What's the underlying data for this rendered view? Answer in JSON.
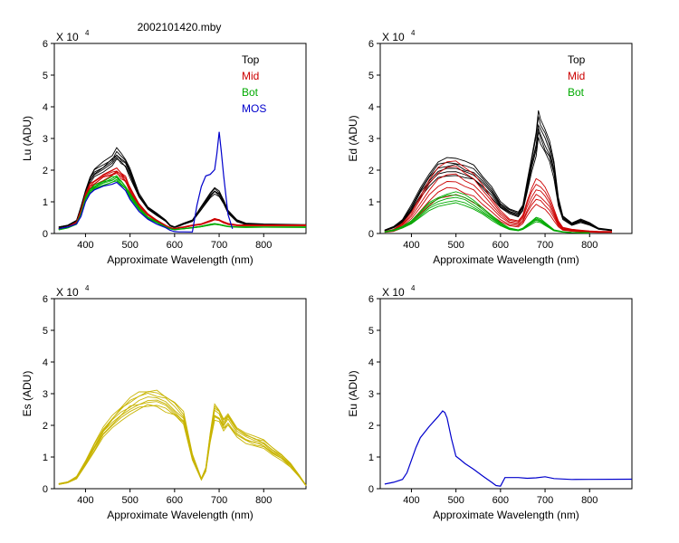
{
  "figure_title": "2002101420.mby",
  "colors": {
    "Top": "#000000",
    "Mid": "#cc0000",
    "Bot": "#00aa00",
    "MOS": "#0000cc",
    "Es": "#c8b400",
    "Eu": "#0000cc"
  },
  "chart_data": [
    {
      "type": "line",
      "id": "lu",
      "ylabel": "Lu (ADU)",
      "xlabel": "Approximate Wavelength (nm)",
      "multiplier": "X 10",
      "exponent": "4",
      "xlim": [
        330,
        895
      ],
      "ylim": [
        0,
        6
      ],
      "xticks": [
        "400",
        "500",
        "600",
        "700",
        "800"
      ],
      "xtick_values": [
        400,
        500,
        600,
        700,
        800
      ],
      "yticks": [
        "0",
        "1",
        "2",
        "3",
        "4",
        "5",
        "6"
      ],
      "legend": [
        "Top",
        "Mid",
        "Bot",
        "MOS"
      ],
      "series": [
        {
          "name": "Top",
          "color_key": "Top",
          "count": 6,
          "spread": 0.06,
          "x": [
            340,
            360,
            380,
            390,
            400,
            410,
            420,
            440,
            460,
            470,
            480,
            490,
            500,
            520,
            540,
            560,
            580,
            590,
            600,
            610,
            620,
            640,
            660,
            680,
            690,
            700,
            710,
            720,
            740,
            760,
            800,
            895
          ],
          "values": [
            0.2,
            0.25,
            0.4,
            0.8,
            1.3,
            1.7,
            1.9,
            2.1,
            2.3,
            2.5,
            2.35,
            2.2,
            1.9,
            1.2,
            0.8,
            0.6,
            0.4,
            0.25,
            0.2,
            0.25,
            0.3,
            0.4,
            0.8,
            1.2,
            1.35,
            1.25,
            1.0,
            0.7,
            0.4,
            0.3,
            0.28,
            0.26
          ]
        },
        {
          "name": "Mid",
          "color_key": "Mid",
          "count": 6,
          "spread": 0.05,
          "x": [
            340,
            360,
            380,
            390,
            400,
            410,
            420,
            440,
            460,
            470,
            480,
            490,
            500,
            520,
            540,
            560,
            580,
            590,
            600,
            610,
            620,
            640,
            660,
            680,
            690,
            700,
            710,
            720,
            740,
            760,
            800,
            895
          ],
          "values": [
            0.15,
            0.2,
            0.35,
            0.7,
            1.2,
            1.5,
            1.6,
            1.8,
            1.9,
            2.0,
            1.85,
            1.7,
            1.4,
            0.9,
            0.6,
            0.4,
            0.25,
            0.18,
            0.15,
            0.18,
            0.2,
            0.25,
            0.3,
            0.4,
            0.45,
            0.42,
            0.35,
            0.3,
            0.26,
            0.26,
            0.26,
            0.26
          ]
        },
        {
          "name": "Bot",
          "color_key": "Bot",
          "count": 6,
          "spread": 0.04,
          "x": [
            340,
            360,
            380,
            390,
            400,
            410,
            420,
            440,
            460,
            470,
            480,
            490,
            500,
            520,
            540,
            560,
            580,
            590,
            600,
            610,
            620,
            640,
            660,
            680,
            690,
            700,
            710,
            720,
            740,
            760,
            800,
            895
          ],
          "values": [
            0.12,
            0.18,
            0.3,
            0.6,
            1.1,
            1.35,
            1.45,
            1.6,
            1.7,
            1.75,
            1.6,
            1.45,
            1.2,
            0.8,
            0.5,
            0.35,
            0.2,
            0.15,
            0.12,
            0.14,
            0.15,
            0.18,
            0.22,
            0.28,
            0.3,
            0.28,
            0.25,
            0.22,
            0.2,
            0.2,
            0.2,
            0.2
          ]
        },
        {
          "name": "MOS",
          "color_key": "MOS",
          "count": 1,
          "spread": 0,
          "x": [
            340,
            360,
            380,
            390,
            400,
            410,
            420,
            440,
            460,
            470,
            480,
            490,
            500,
            520,
            540,
            560,
            580,
            590,
            600,
            610,
            620,
            640,
            650,
            660,
            670,
            680,
            690,
            695,
            700,
            705,
            710,
            720,
            730
          ],
          "values": [
            0.15,
            0.2,
            0.3,
            0.55,
            1.0,
            1.25,
            1.35,
            1.5,
            1.55,
            1.6,
            1.5,
            1.35,
            1.1,
            0.7,
            0.45,
            0.3,
            0.18,
            0.1,
            0.06,
            0.05,
            0.05,
            0.05,
            0.9,
            1.5,
            1.8,
            1.9,
            2.0,
            2.5,
            3.2,
            2.6,
            1.8,
            0.6,
            0.15
          ]
        }
      ]
    },
    {
      "type": "line",
      "id": "ed",
      "ylabel": "Ed  (ADU)",
      "xlabel": "Approximate Wavelength (nm)",
      "multiplier": "X 10",
      "exponent": "4",
      "xlim": [
        330,
        895
      ],
      "ylim": [
        0,
        6
      ],
      "xticks": [
        "400",
        "500",
        "600",
        "700",
        "800"
      ],
      "xtick_values": [
        400,
        500,
        600,
        700,
        800
      ],
      "yticks": [
        "0",
        "1",
        "2",
        "3",
        "4",
        "5",
        "6"
      ],
      "legend": [
        "Top",
        "Mid",
        "Bot"
      ],
      "series": [
        {
          "name": "Top",
          "color_key": "Top",
          "count": 6,
          "spread": 0.12,
          "x": [
            340,
            360,
            380,
            400,
            420,
            440,
            460,
            480,
            500,
            520,
            540,
            560,
            580,
            600,
            620,
            640,
            650,
            660,
            670,
            680,
            685,
            690,
            700,
            710,
            720,
            730,
            740,
            760,
            780,
            800,
            820,
            850
          ],
          "values": [
            0.1,
            0.2,
            0.4,
            0.8,
            1.3,
            1.7,
            2.0,
            2.1,
            2.1,
            2.0,
            1.9,
            1.6,
            1.3,
            0.9,
            0.7,
            0.6,
            0.8,
            1.5,
            2.2,
            2.8,
            3.4,
            3.2,
            2.9,
            2.6,
            2.0,
            1.0,
            0.5,
            0.3,
            0.4,
            0.3,
            0.15,
            0.1
          ]
        },
        {
          "name": "Mid",
          "color_key": "Mid",
          "count": 6,
          "spread": 0.45,
          "x": [
            340,
            360,
            380,
            400,
            420,
            440,
            460,
            480,
            500,
            520,
            540,
            560,
            580,
            600,
            620,
            640,
            650,
            660,
            670,
            680,
            690,
            700,
            710,
            720,
            730,
            740,
            760,
            780,
            800,
            820,
            850
          ],
          "values": [
            0.05,
            0.1,
            0.25,
            0.5,
            0.9,
            1.3,
            1.6,
            1.75,
            1.75,
            1.6,
            1.45,
            1.15,
            0.85,
            0.55,
            0.35,
            0.3,
            0.45,
            0.8,
            1.1,
            1.3,
            1.25,
            1.1,
            0.9,
            0.6,
            0.3,
            0.15,
            0.1,
            0.08,
            0.06,
            0.05,
            0.05
          ]
        },
        {
          "name": "Bot",
          "color_key": "Bot",
          "count": 5,
          "spread": 0.15,
          "x": [
            340,
            360,
            380,
            400,
            420,
            440,
            460,
            480,
            500,
            520,
            540,
            560,
            580,
            600,
            620,
            640,
            650,
            660,
            670,
            680,
            690,
            700,
            710,
            720,
            740,
            760,
            800
          ],
          "values": [
            0.05,
            0.1,
            0.2,
            0.35,
            0.6,
            0.85,
            1.0,
            1.1,
            1.15,
            1.05,
            0.9,
            0.7,
            0.5,
            0.3,
            0.15,
            0.1,
            0.15,
            0.25,
            0.35,
            0.45,
            0.4,
            0.3,
            0.2,
            0.1,
            0.05,
            0.03,
            0.02
          ]
        }
      ]
    },
    {
      "type": "line",
      "id": "es",
      "ylabel": "Es  (ADU)",
      "xlabel": "Approximate Wavelength (nm)",
      "multiplier": "X 10",
      "exponent": "4",
      "xlim": [
        330,
        895
      ],
      "ylim": [
        0,
        6
      ],
      "xticks": [
        "400",
        "500",
        "600",
        "700",
        "800"
      ],
      "xtick_values": [
        400,
        500,
        600,
        700,
        800
      ],
      "yticks": [
        "0",
        "1",
        "2",
        "3",
        "4",
        "5",
        "6"
      ],
      "legend": [],
      "series": [
        {
          "name": "Es",
          "color_key": "Es",
          "count": 8,
          "spread": 0.09,
          "x": [
            340,
            360,
            380,
            400,
            420,
            440,
            460,
            480,
            500,
            520,
            540,
            560,
            580,
            600,
            620,
            640,
            660,
            670,
            680,
            690,
            700,
            710,
            720,
            740,
            760,
            780,
            800,
            820,
            840,
            860,
            880,
            895
          ],
          "values": [
            0.15,
            0.2,
            0.35,
            0.8,
            1.3,
            1.8,
            2.1,
            2.4,
            2.6,
            2.75,
            2.85,
            2.8,
            2.7,
            2.5,
            2.2,
            1.0,
            0.3,
            0.6,
            1.6,
            2.4,
            2.3,
            2.0,
            2.2,
            1.8,
            1.6,
            1.5,
            1.4,
            1.2,
            1.0,
            0.75,
            0.4,
            0.1
          ]
        }
      ]
    },
    {
      "type": "line",
      "id": "eu",
      "ylabel": "Eu  (ADU)",
      "xlabel": "Approximate Wavelength (nm)",
      "multiplier": "X 10",
      "exponent": "4",
      "xlim": [
        330,
        895
      ],
      "ylim": [
        0,
        6
      ],
      "xticks": [
        "400",
        "500",
        "600",
        "700",
        "800"
      ],
      "xtick_values": [
        400,
        500,
        600,
        700,
        800
      ],
      "yticks": [
        "0",
        "1",
        "2",
        "3",
        "4",
        "5",
        "6"
      ],
      "legend": [],
      "series": [
        {
          "name": "Eu",
          "color_key": "Eu",
          "count": 1,
          "spread": 0,
          "x": [
            340,
            360,
            380,
            390,
            400,
            410,
            420,
            440,
            460,
            470,
            475,
            480,
            490,
            500,
            510,
            520,
            540,
            560,
            580,
            590,
            600,
            610,
            640,
            660,
            680,
            700,
            720,
            760,
            800,
            895
          ],
          "values": [
            0.15,
            0.2,
            0.3,
            0.5,
            0.9,
            1.3,
            1.6,
            2.0,
            2.3,
            2.45,
            2.35,
            2.2,
            1.6,
            1.0,
            0.9,
            0.8,
            0.6,
            0.4,
            0.2,
            0.1,
            0.08,
            0.35,
            0.35,
            0.33,
            0.35,
            0.38,
            0.32,
            0.3,
            0.3,
            0.3
          ]
        }
      ]
    }
  ]
}
